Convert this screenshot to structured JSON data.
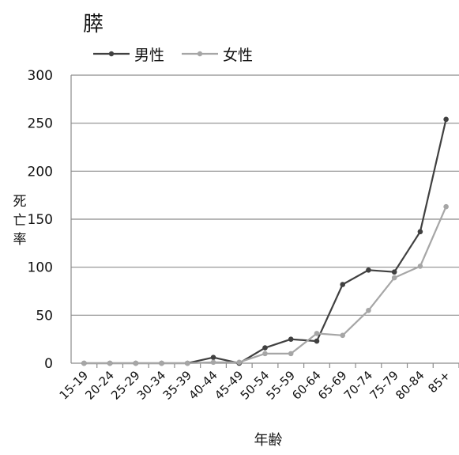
{
  "chart_data": {
    "type": "line",
    "title": "膵",
    "xlabel": "年齢",
    "ylabel": "死亡率",
    "categories": [
      "15-19",
      "20-24",
      "25-29",
      "30-34",
      "35-39",
      "40-44",
      "45-49",
      "50-54",
      "55-59",
      "60-64",
      "65-69",
      "70-74",
      "75-79",
      "80-84",
      "85+"
    ],
    "ylim": [
      0,
      300
    ],
    "yticks": [
      0,
      50,
      100,
      150,
      200,
      250,
      300
    ],
    "grid": true,
    "legend_position": "top-left",
    "series": [
      {
        "name": "男性",
        "color": "#404040",
        "values": [
          0,
          0,
          0,
          0,
          0,
          6,
          0,
          16,
          25,
          23,
          82,
          97,
          95,
          137,
          254
        ]
      },
      {
        "name": "女性",
        "color": "#a6a6a6",
        "values": [
          0,
          0,
          0,
          0,
          0,
          1,
          1,
          10,
          10,
          31,
          29,
          55,
          89,
          101,
          163
        ]
      }
    ]
  }
}
